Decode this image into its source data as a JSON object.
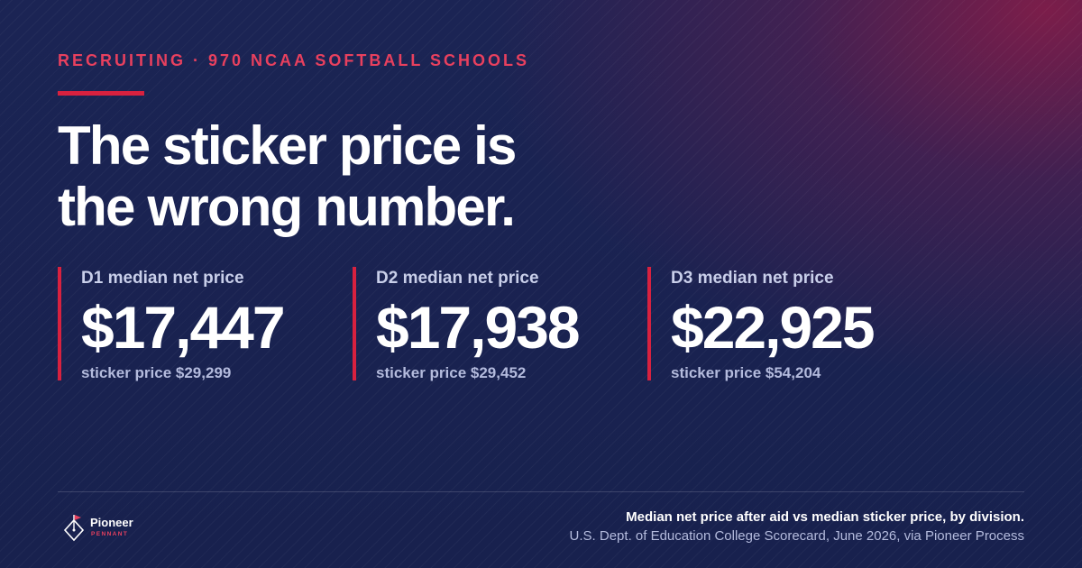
{
  "kicker": "RECRUITING · 970 NCAA SOFTBALL SCHOOLS",
  "headline": {
    "line1": "The sticker price is",
    "line2": "the wrong number."
  },
  "stats": [
    {
      "label": "D1 median net price",
      "value": "$17,447",
      "sub": "sticker price $29,299"
    },
    {
      "label": "D2 median net price",
      "value": "$17,938",
      "sub": "sticker price $29,452"
    },
    {
      "label": "D3 median net price",
      "value": "$22,925",
      "sub": "sticker price $54,204"
    }
  ],
  "footer": {
    "title": "Median net price after aid vs median sticker price, by division.",
    "source": "U.S. Dept. of Education College Scorecard, June 2026, via Pioneer Process"
  },
  "logo": {
    "name": "Pioneer",
    "sub": "PENNANT",
    "icon": "pennant-diamond-icon"
  },
  "colors": {
    "background": "#1b2454",
    "accent": "#d8213f",
    "kicker": "#e8405e",
    "muted_text": "#b4bbdd"
  }
}
